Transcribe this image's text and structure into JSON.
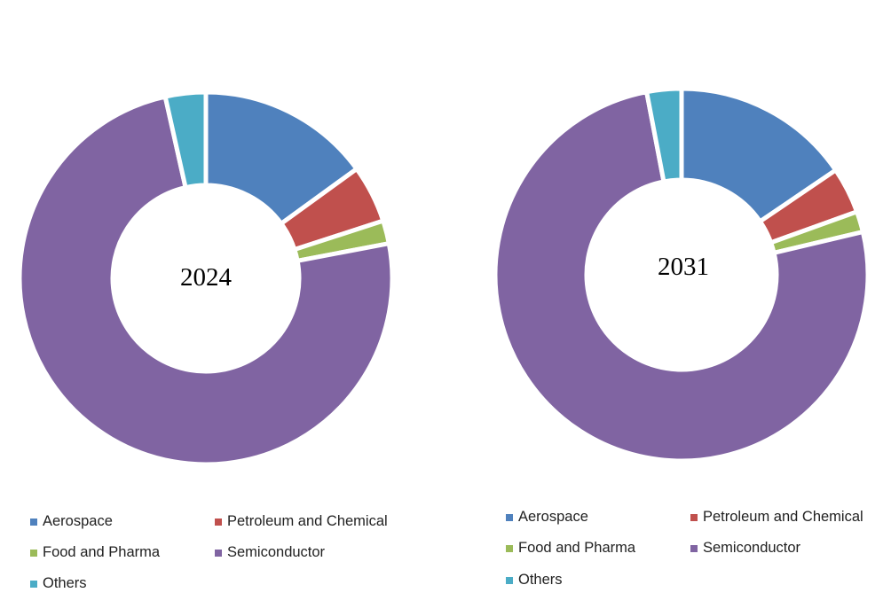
{
  "chart_data": [
    {
      "type": "pie",
      "title": "",
      "center_label": "2024",
      "categories": [
        "Aerospace",
        "Petroleum and Chemical",
        "Food and Pharma",
        "Semiconductor",
        "Others"
      ],
      "values": [
        15,
        5,
        2,
        74.5,
        3.5
      ],
      "colors": [
        "#4F81BD",
        "#C0504D",
        "#9BBB59",
        "#8064A2",
        "#4BACC6"
      ],
      "legend": {
        "position": "bottom",
        "labels": [
          "Aerospace",
          "Petroleum and Chemical",
          "Food and Pharma",
          "Semiconductor",
          "Others"
        ]
      }
    },
    {
      "type": "pie",
      "title": "",
      "center_label": "2031",
      "categories": [
        "Aerospace",
        "Petroleum and Chemical",
        "Food and Pharma",
        "Semiconductor",
        "Others"
      ],
      "values": [
        15.5,
        4,
        1.8,
        75.7,
        3
      ],
      "colors": [
        "#4F81BD",
        "#C0504D",
        "#9BBB59",
        "#8064A2",
        "#4BACC6"
      ],
      "legend": {
        "position": "bottom",
        "labels": [
          "Aerospace",
          "Petroleum and Chemical",
          "Food and Pharma",
          "Semiconductor",
          "Others"
        ]
      }
    }
  ]
}
